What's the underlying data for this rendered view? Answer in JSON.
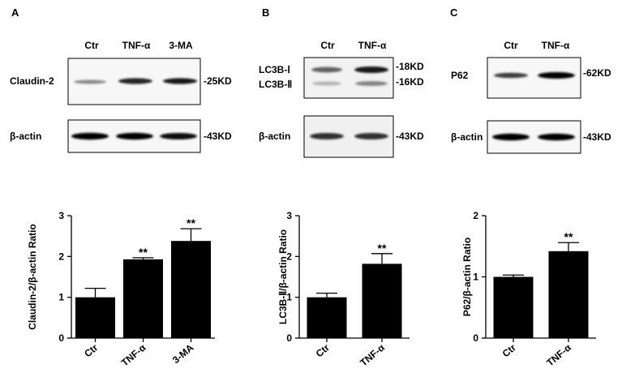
{
  "panels": [
    {
      "letter": "A",
      "lanes": [
        "Ctr",
        "TNF-α",
        "3-MA"
      ],
      "blots": [
        {
          "label": "Claudin-2",
          "size": "-25KD",
          "intensity": [
            0.45,
            0.85,
            0.9
          ]
        },
        {
          "label": "β-actin",
          "size": "-43KD",
          "intensity": [
            1.0,
            1.0,
            0.95
          ]
        }
      ]
    },
    {
      "letter": "B",
      "lanes": [
        "Ctr",
        "TNF-α"
      ],
      "blots": [
        {
          "label": "LC3B-Ⅰ",
          "size": "-18KD",
          "intensity": [
            0.6,
            0.9
          ]
        },
        {
          "label": "LC3B-Ⅱ",
          "size": "-16KD",
          "intensity": [
            0.25,
            0.45
          ]
        },
        {
          "label": "β-actin",
          "size": "-43KD",
          "intensity": [
            0.8,
            0.8
          ]
        }
      ]
    },
    {
      "letter": "C",
      "lanes": [
        "Ctr",
        "TNF-α"
      ],
      "blots": [
        {
          "label": "P62",
          "size": "-62KD",
          "intensity": [
            0.75,
            1.0
          ]
        },
        {
          "label": "β-actin",
          "size": "-43KD",
          "intensity": [
            1.0,
            1.0
          ]
        }
      ]
    }
  ],
  "chart_data": [
    {
      "type": "bar",
      "categories": [
        "Ctr",
        "TNF-α",
        "3-MA"
      ],
      "values": [
        1.0,
        1.93,
        2.38
      ],
      "errors": [
        0.22,
        0.04,
        0.3
      ],
      "significance": [
        "",
        "**",
        "**"
      ],
      "ylabel": "Claudin-2/β-actin Ratio",
      "ylim": [
        0,
        3
      ],
      "yticks": [
        "0",
        "1",
        "2",
        "3"
      ],
      "color": "#000000"
    },
    {
      "type": "bar",
      "categories": [
        "Ctr",
        "TNF-α"
      ],
      "values": [
        1.0,
        1.82
      ],
      "errors": [
        0.1,
        0.25
      ],
      "significance": [
        "",
        "**"
      ],
      "ylabel": "LC3B-Ⅱ/β-actin Ratio",
      "ylim": [
        0,
        3
      ],
      "yticks": [
        "0",
        "1",
        "2",
        "3"
      ],
      "color": "#000000"
    },
    {
      "type": "bar",
      "categories": [
        "Ctr",
        "TNF-α"
      ],
      "values": [
        1.0,
        1.42
      ],
      "errors": [
        0.03,
        0.14
      ],
      "significance": [
        "",
        "**"
      ],
      "ylabel": "P62/β-actin Ratio",
      "ylim": [
        0,
        2
      ],
      "yticks": [
        "0",
        "1",
        "2"
      ],
      "color": "#000000"
    }
  ]
}
